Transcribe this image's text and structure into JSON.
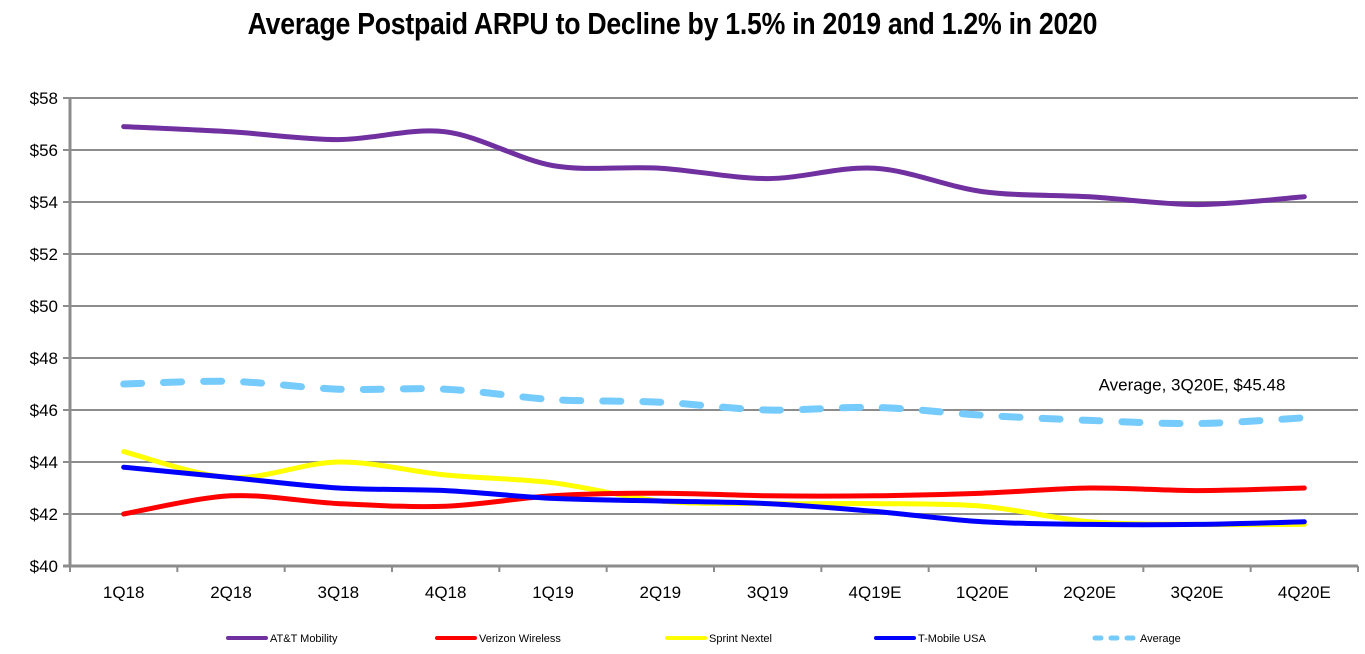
{
  "chart_data": {
    "type": "line",
    "title": "Average Postpaid ARPU  to Decline by 1.5% in 2019 and 1.2% in 2020",
    "xlabel": "",
    "ylabel": "",
    "categories": [
      "1Q18",
      "2Q18",
      "3Q18",
      "4Q18",
      "1Q19",
      "2Q19",
      "3Q19",
      "4Q19E",
      "1Q20E",
      "2Q20E",
      "3Q20E",
      "4Q20E"
    ],
    "ylim": [
      40,
      58
    ],
    "yticks": [
      40,
      42,
      44,
      46,
      48,
      50,
      52,
      54,
      56,
      58
    ],
    "ytick_labels": [
      "$40",
      "$42",
      "$44",
      "$46",
      "$48",
      "$50",
      "$52",
      "$54",
      "$56",
      "$58"
    ],
    "grid": true,
    "legend_position": "bottom",
    "series": [
      {
        "name": "AT&T Mobility",
        "color": "#7030a0",
        "dashed": false,
        "values": [
          56.9,
          56.7,
          56.4,
          56.7,
          55.4,
          55.3,
          54.9,
          55.3,
          54.4,
          54.2,
          53.9,
          54.2
        ]
      },
      {
        "name": "Verizon Wireless",
        "color": "#ff0000",
        "dashed": false,
        "values": [
          42.0,
          42.7,
          42.4,
          42.3,
          42.7,
          42.8,
          42.7,
          42.7,
          42.8,
          43.0,
          42.9,
          43.0
        ]
      },
      {
        "name": "Sprint Nextel",
        "color": "#ffff00",
        "dashed": false,
        "values": [
          44.4,
          43.4,
          44.0,
          43.5,
          43.2,
          42.5,
          42.4,
          42.4,
          42.3,
          41.7,
          41.6,
          41.6
        ]
      },
      {
        "name": "T-Mobile USA",
        "color": "#0000ff",
        "dashed": false,
        "values": [
          43.8,
          43.4,
          43.0,
          42.9,
          42.6,
          42.5,
          42.4,
          42.1,
          41.7,
          41.6,
          41.6,
          41.7
        ]
      },
      {
        "name": "Average",
        "color": "#75cbfb",
        "dashed": true,
        "values": [
          47.0,
          47.1,
          46.8,
          46.8,
          46.4,
          46.3,
          46.0,
          46.1,
          45.8,
          45.6,
          45.48,
          45.7
        ]
      }
    ],
    "annotations": [
      {
        "text": "Average, 3Q20E, $45.48",
        "series": "Average",
        "category": "3Q20E",
        "value": 45.48
      }
    ]
  }
}
